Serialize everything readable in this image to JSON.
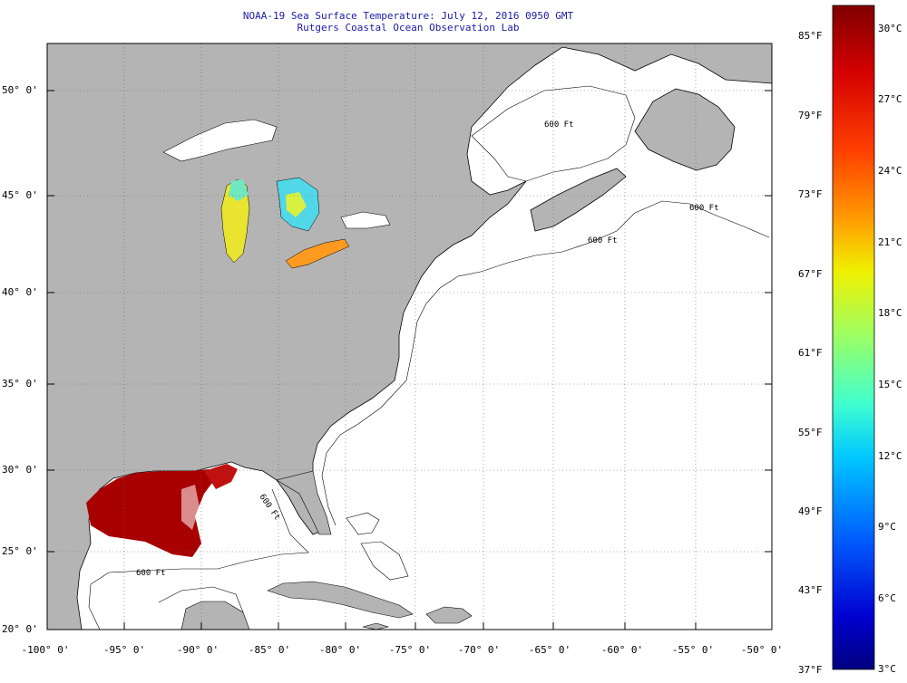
{
  "title_line1": "NOAA-19 Sea Surface Temperature:  July 12, 2016 0950 GMT",
  "title_line2": "Rutgers Coastal Ocean Observation Lab",
  "lat_labels": [
    "50° 0'",
    "45° 0'",
    "40° 0'",
    "35° 0'",
    "30° 0'",
    "25° 0'",
    "20° 0'"
  ],
  "lon_labels": [
    "-100° 0'",
    "-95° 0'",
    "-90° 0'",
    "-85° 0'",
    "-80° 0'",
    "-75° 0'",
    "-70° 0'",
    "-65° 0'",
    "-60° 0'",
    "-55° 0'",
    "-50° 0'"
  ],
  "fahrenheit_labels": [
    "85°F",
    "79°F",
    "73°F",
    "67°F",
    "61°F",
    "55°F",
    "49°F",
    "43°F",
    "37°F"
  ],
  "celsius_labels": [
    "30°C",
    "27°C",
    "24°C",
    "21°C",
    "18°C",
    "15°C",
    "12°C",
    "9°C",
    "6°C",
    "3°C"
  ],
  "isobath_labels": [
    "600 Ft",
    "600 Ft",
    "600 Ft",
    "600 Ft",
    "600 Ft"
  ],
  "colors": {
    "land": "#b4b4b4",
    "ocean": "#ffffff",
    "title": "#1a1aa8",
    "colorbar_stops": [
      "#800000",
      "#d40000",
      "#ff4000",
      "#ff9a00",
      "#f0f000",
      "#9aff66",
      "#40ffd0",
      "#00c8ff",
      "#0060ff",
      "#0000d0",
      "#000080"
    ]
  }
}
